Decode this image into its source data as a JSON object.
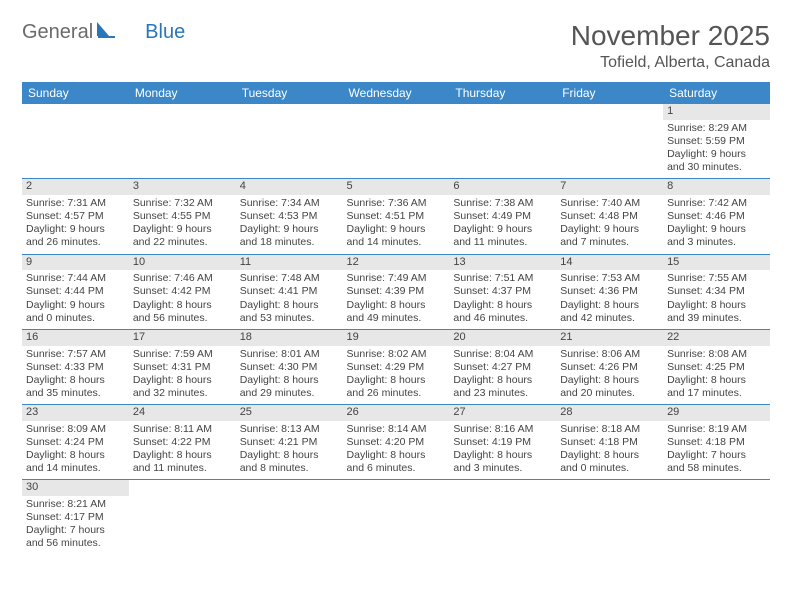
{
  "logo": {
    "text_general": "General",
    "text_blue": "Blue"
  },
  "title": "November 2025",
  "location": "Tofield, Alberta, Canada",
  "daynames": [
    "Sunday",
    "Monday",
    "Tuesday",
    "Wednesday",
    "Thursday",
    "Friday",
    "Saturday"
  ],
  "colors": {
    "header_bg": "#3b87c8",
    "header_text": "#ffffff",
    "daynum_bg": "#e7e7e7",
    "border": "#3b87c8",
    "text": "#444444",
    "title_text": "#555555"
  },
  "days": [
    {
      "n": "",
      "sunrise": "",
      "sunset": "",
      "daylight1": "",
      "daylight2": ""
    },
    {
      "n": "",
      "sunrise": "",
      "sunset": "",
      "daylight1": "",
      "daylight2": ""
    },
    {
      "n": "",
      "sunrise": "",
      "sunset": "",
      "daylight1": "",
      "daylight2": ""
    },
    {
      "n": "",
      "sunrise": "",
      "sunset": "",
      "daylight1": "",
      "daylight2": ""
    },
    {
      "n": "",
      "sunrise": "",
      "sunset": "",
      "daylight1": "",
      "daylight2": ""
    },
    {
      "n": "",
      "sunrise": "",
      "sunset": "",
      "daylight1": "",
      "daylight2": ""
    },
    {
      "n": "1",
      "sunrise": "Sunrise: 8:29 AM",
      "sunset": "Sunset: 5:59 PM",
      "daylight1": "Daylight: 9 hours",
      "daylight2": "and 30 minutes."
    },
    {
      "n": "2",
      "sunrise": "Sunrise: 7:31 AM",
      "sunset": "Sunset: 4:57 PM",
      "daylight1": "Daylight: 9 hours",
      "daylight2": "and 26 minutes."
    },
    {
      "n": "3",
      "sunrise": "Sunrise: 7:32 AM",
      "sunset": "Sunset: 4:55 PM",
      "daylight1": "Daylight: 9 hours",
      "daylight2": "and 22 minutes."
    },
    {
      "n": "4",
      "sunrise": "Sunrise: 7:34 AM",
      "sunset": "Sunset: 4:53 PM",
      "daylight1": "Daylight: 9 hours",
      "daylight2": "and 18 minutes."
    },
    {
      "n": "5",
      "sunrise": "Sunrise: 7:36 AM",
      "sunset": "Sunset: 4:51 PM",
      "daylight1": "Daylight: 9 hours",
      "daylight2": "and 14 minutes."
    },
    {
      "n": "6",
      "sunrise": "Sunrise: 7:38 AM",
      "sunset": "Sunset: 4:49 PM",
      "daylight1": "Daylight: 9 hours",
      "daylight2": "and 11 minutes."
    },
    {
      "n": "7",
      "sunrise": "Sunrise: 7:40 AM",
      "sunset": "Sunset: 4:48 PM",
      "daylight1": "Daylight: 9 hours",
      "daylight2": "and 7 minutes."
    },
    {
      "n": "8",
      "sunrise": "Sunrise: 7:42 AM",
      "sunset": "Sunset: 4:46 PM",
      "daylight1": "Daylight: 9 hours",
      "daylight2": "and 3 minutes."
    },
    {
      "n": "9",
      "sunrise": "Sunrise: 7:44 AM",
      "sunset": "Sunset: 4:44 PM",
      "daylight1": "Daylight: 9 hours",
      "daylight2": "and 0 minutes."
    },
    {
      "n": "10",
      "sunrise": "Sunrise: 7:46 AM",
      "sunset": "Sunset: 4:42 PM",
      "daylight1": "Daylight: 8 hours",
      "daylight2": "and 56 minutes."
    },
    {
      "n": "11",
      "sunrise": "Sunrise: 7:48 AM",
      "sunset": "Sunset: 4:41 PM",
      "daylight1": "Daylight: 8 hours",
      "daylight2": "and 53 minutes."
    },
    {
      "n": "12",
      "sunrise": "Sunrise: 7:49 AM",
      "sunset": "Sunset: 4:39 PM",
      "daylight1": "Daylight: 8 hours",
      "daylight2": "and 49 minutes."
    },
    {
      "n": "13",
      "sunrise": "Sunrise: 7:51 AM",
      "sunset": "Sunset: 4:37 PM",
      "daylight1": "Daylight: 8 hours",
      "daylight2": "and 46 minutes."
    },
    {
      "n": "14",
      "sunrise": "Sunrise: 7:53 AM",
      "sunset": "Sunset: 4:36 PM",
      "daylight1": "Daylight: 8 hours",
      "daylight2": "and 42 minutes."
    },
    {
      "n": "15",
      "sunrise": "Sunrise: 7:55 AM",
      "sunset": "Sunset: 4:34 PM",
      "daylight1": "Daylight: 8 hours",
      "daylight2": "and 39 minutes."
    },
    {
      "n": "16",
      "sunrise": "Sunrise: 7:57 AM",
      "sunset": "Sunset: 4:33 PM",
      "daylight1": "Daylight: 8 hours",
      "daylight2": "and 35 minutes."
    },
    {
      "n": "17",
      "sunrise": "Sunrise: 7:59 AM",
      "sunset": "Sunset: 4:31 PM",
      "daylight1": "Daylight: 8 hours",
      "daylight2": "and 32 minutes."
    },
    {
      "n": "18",
      "sunrise": "Sunrise: 8:01 AM",
      "sunset": "Sunset: 4:30 PM",
      "daylight1": "Daylight: 8 hours",
      "daylight2": "and 29 minutes."
    },
    {
      "n": "19",
      "sunrise": "Sunrise: 8:02 AM",
      "sunset": "Sunset: 4:29 PM",
      "daylight1": "Daylight: 8 hours",
      "daylight2": "and 26 minutes."
    },
    {
      "n": "20",
      "sunrise": "Sunrise: 8:04 AM",
      "sunset": "Sunset: 4:27 PM",
      "daylight1": "Daylight: 8 hours",
      "daylight2": "and 23 minutes."
    },
    {
      "n": "21",
      "sunrise": "Sunrise: 8:06 AM",
      "sunset": "Sunset: 4:26 PM",
      "daylight1": "Daylight: 8 hours",
      "daylight2": "and 20 minutes."
    },
    {
      "n": "22",
      "sunrise": "Sunrise: 8:08 AM",
      "sunset": "Sunset: 4:25 PM",
      "daylight1": "Daylight: 8 hours",
      "daylight2": "and 17 minutes."
    },
    {
      "n": "23",
      "sunrise": "Sunrise: 8:09 AM",
      "sunset": "Sunset: 4:24 PM",
      "daylight1": "Daylight: 8 hours",
      "daylight2": "and 14 minutes."
    },
    {
      "n": "24",
      "sunrise": "Sunrise: 8:11 AM",
      "sunset": "Sunset: 4:22 PM",
      "daylight1": "Daylight: 8 hours",
      "daylight2": "and 11 minutes."
    },
    {
      "n": "25",
      "sunrise": "Sunrise: 8:13 AM",
      "sunset": "Sunset: 4:21 PM",
      "daylight1": "Daylight: 8 hours",
      "daylight2": "and 8 minutes."
    },
    {
      "n": "26",
      "sunrise": "Sunrise: 8:14 AM",
      "sunset": "Sunset: 4:20 PM",
      "daylight1": "Daylight: 8 hours",
      "daylight2": "and 6 minutes."
    },
    {
      "n": "27",
      "sunrise": "Sunrise: 8:16 AM",
      "sunset": "Sunset: 4:19 PM",
      "daylight1": "Daylight: 8 hours",
      "daylight2": "and 3 minutes."
    },
    {
      "n": "28",
      "sunrise": "Sunrise: 8:18 AM",
      "sunset": "Sunset: 4:18 PM",
      "daylight1": "Daylight: 8 hours",
      "daylight2": "and 0 minutes."
    },
    {
      "n": "29",
      "sunrise": "Sunrise: 8:19 AM",
      "sunset": "Sunset: 4:18 PM",
      "daylight1": "Daylight: 7 hours",
      "daylight2": "and 58 minutes."
    },
    {
      "n": "30",
      "sunrise": "Sunrise: 8:21 AM",
      "sunset": "Sunset: 4:17 PM",
      "daylight1": "Daylight: 7 hours",
      "daylight2": "and 56 minutes."
    },
    {
      "n": "",
      "sunrise": "",
      "sunset": "",
      "daylight1": "",
      "daylight2": ""
    },
    {
      "n": "",
      "sunrise": "",
      "sunset": "",
      "daylight1": "",
      "daylight2": ""
    },
    {
      "n": "",
      "sunrise": "",
      "sunset": "",
      "daylight1": "",
      "daylight2": ""
    },
    {
      "n": "",
      "sunrise": "",
      "sunset": "",
      "daylight1": "",
      "daylight2": ""
    },
    {
      "n": "",
      "sunrise": "",
      "sunset": "",
      "daylight1": "",
      "daylight2": ""
    },
    {
      "n": "",
      "sunrise": "",
      "sunset": "",
      "daylight1": "",
      "daylight2": ""
    }
  ]
}
